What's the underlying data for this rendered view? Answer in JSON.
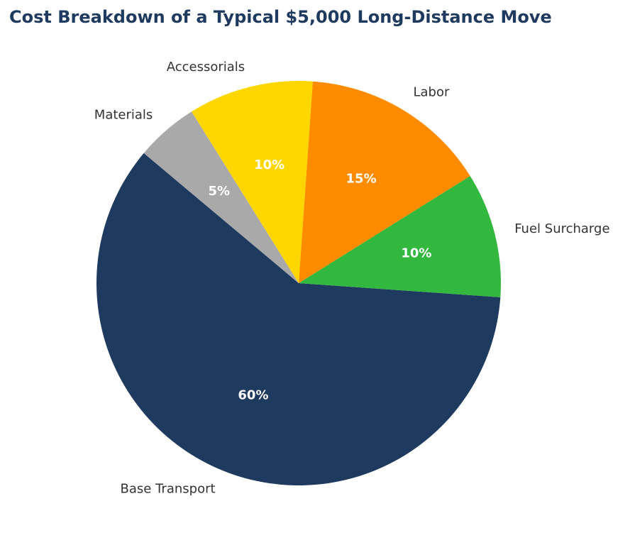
{
  "chart_data": {
    "type": "pie",
    "title": "Cost Breakdown of a Typical $5,000 Long-Distance Move",
    "categories": [
      "Base Transport",
      "Fuel Surcharge",
      "Labor",
      "Accessorials",
      "Materials"
    ],
    "values": [
      60,
      10,
      15,
      10,
      5
    ],
    "value_labels": [
      "60%",
      "10%",
      "15%",
      "10%",
      "5%"
    ],
    "colors": [
      "#1f3a5f",
      "#32b83f",
      "#ff8c00",
      "#ffd700",
      "#a9a9a9"
    ]
  }
}
